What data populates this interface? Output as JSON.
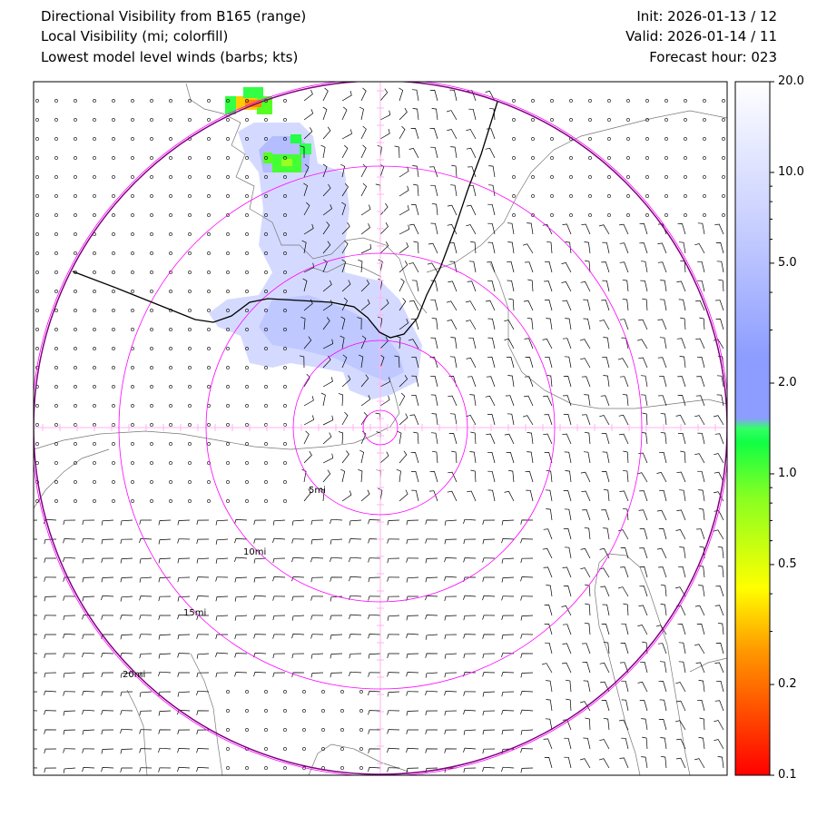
{
  "header": {
    "title_line1": "Directional Visibility from B165 (range)",
    "title_line2": "Local Visibility (mi; colorfill)",
    "title_line3": "Lowest model level winds (barbs; kts)",
    "init": "Init: 2026-01-13 / 12",
    "valid": "Valid: 2026-01-14 / 11",
    "forecast_hour": "Forecast hour: 023"
  },
  "range_rings": [
    {
      "label": "5mi",
      "miles": 5
    },
    {
      "label": "10mi",
      "miles": 10
    },
    {
      "label": "15mi",
      "miles": 15
    },
    {
      "label": "20mi",
      "miles": 20
    }
  ],
  "colorbar": {
    "ticks": [
      {
        "label": "20.0",
        "value": 20
      },
      {
        "label": "10.0",
        "value": 10
      },
      {
        "label": "5.0",
        "value": 5
      },
      {
        "label": "2.0",
        "value": 2
      },
      {
        "label": "1.0",
        "value": 1
      },
      {
        "label": "0.5",
        "value": 0.5
      },
      {
        "label": "0.2",
        "value": 0.2
      },
      {
        "label": "0.1",
        "value": 0.1
      }
    ],
    "colors": {
      "low": "#ff0000",
      "orange": "#ff9900",
      "yellow": "#ffff00",
      "green": "#22ff44",
      "blue": "#8c9cff",
      "high": "#ffffff"
    }
  },
  "colors": {
    "rings": "#ff00ff",
    "outer_ring": "#800080",
    "range_line": "#000000",
    "coast": "#777777",
    "barbs": "#000000"
  }
}
